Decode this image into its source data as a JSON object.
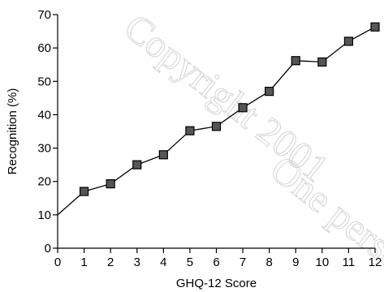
{
  "chart_data": {
    "type": "line",
    "title": "",
    "xlabel": "GHQ-12 Score",
    "ylabel": "Recognition (%)",
    "x": [
      0,
      1,
      2,
      3,
      4,
      5,
      6,
      7,
      8,
      9,
      10,
      11,
      12
    ],
    "series": [
      {
        "values": [
          10,
          17,
          19.3,
          25,
          28,
          35.2,
          36.5,
          42.1,
          47,
          56.2,
          55.8,
          62,
          66.3
        ],
        "markers": [
          false,
          true,
          true,
          true,
          true,
          true,
          true,
          true,
          true,
          true,
          true,
          true,
          true
        ]
      }
    ],
    "xlim": [
      0,
      12
    ],
    "ylim": [
      0,
      70
    ],
    "xticks": [
      "0",
      "1",
      "2",
      "3",
      "4",
      "5",
      "6",
      "7",
      "8",
      "9",
      "10",
      "11",
      "12"
    ],
    "yticks": [
      "0",
      "10",
      "20",
      "30",
      "40",
      "50",
      "60",
      "70"
    ],
    "grid": false,
    "marker_shape": "square",
    "marker_color": "#555555",
    "line_color": "#000000",
    "watermark": [
      "Copyright 2001",
      "One person"
    ]
  }
}
